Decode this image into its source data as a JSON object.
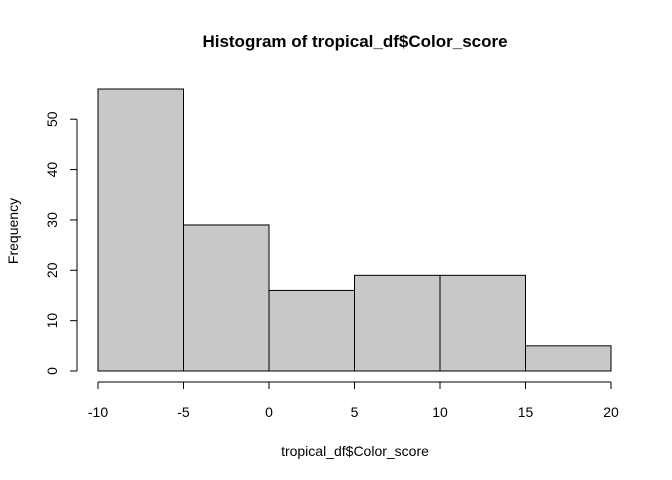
{
  "chart_data": {
    "type": "bar",
    "title": "Histogram of tropical_df$Color_score",
    "xlabel": "tropical_df$Color_score",
    "ylabel": "Frequency",
    "bins": [
      {
        "x0": -10,
        "x1": -5,
        "count": 56
      },
      {
        "x0": -5,
        "x1": 0,
        "count": 29
      },
      {
        "x0": 0,
        "x1": 5,
        "count": 16
      },
      {
        "x0": 5,
        "x1": 10,
        "count": 19
      },
      {
        "x0": 10,
        "x1": 15,
        "count": 19
      },
      {
        "x0": 15,
        "x1": 20,
        "count": 5
      }
    ],
    "xlim": [
      -10,
      20
    ],
    "ylim": [
      0,
      56
    ],
    "xticks": [
      -10,
      -5,
      0,
      5,
      10,
      15,
      20
    ],
    "yticks": [
      0,
      10,
      20,
      30,
      40,
      50
    ],
    "grid": false,
    "colors": {
      "bar_fill": "#c8c8c8",
      "bar_stroke": "#000000"
    }
  }
}
